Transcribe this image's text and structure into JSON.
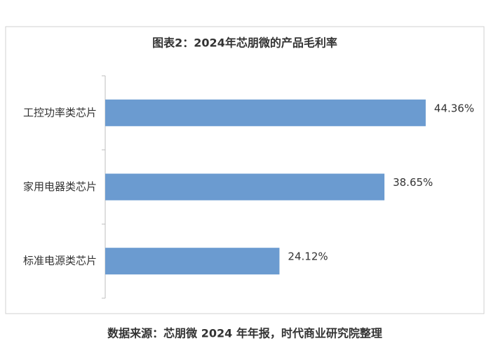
{
  "chart_data": {
    "type": "hbar",
    "title": "图表2：2024年芯朋微的产品毛利率",
    "categories": [
      "工控功率类芯片",
      "家用电器类芯片",
      "标准电源类芯片"
    ],
    "values": [
      44.36,
      38.65,
      24.12
    ],
    "value_labels": [
      "44.36%",
      "38.65%",
      "24.12%"
    ],
    "color": "#6b9bd0",
    "xlim": [
      0,
      50
    ]
  },
  "source": "数据来源：芯朋微 2024 年年报，时代商业研究院整理"
}
